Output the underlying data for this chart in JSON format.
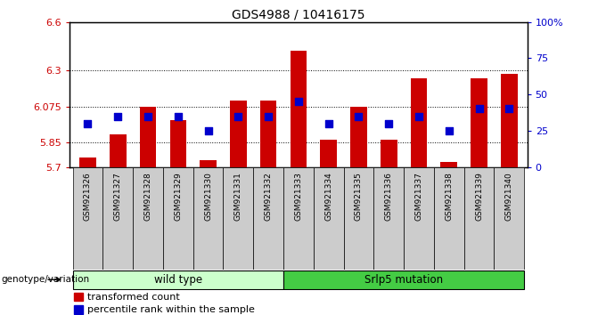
{
  "title": "GDS4988 / 10416175",
  "samples": [
    "GSM921326",
    "GSM921327",
    "GSM921328",
    "GSM921329",
    "GSM921330",
    "GSM921331",
    "GSM921332",
    "GSM921333",
    "GSM921334",
    "GSM921335",
    "GSM921336",
    "GSM921337",
    "GSM921338",
    "GSM921339",
    "GSM921340"
  ],
  "bar_values": [
    5.76,
    5.9,
    6.075,
    5.99,
    5.74,
    6.115,
    6.115,
    6.42,
    5.87,
    6.075,
    5.87,
    6.25,
    5.73,
    6.25,
    6.28
  ],
  "percentile_pct": [
    30,
    35,
    35,
    35,
    25,
    35,
    35,
    45,
    30,
    35,
    30,
    35,
    25,
    40,
    40
  ],
  "wild_type_count": 7,
  "ylim_left": [
    5.7,
    6.6
  ],
  "ylim_right": [
    0,
    100
  ],
  "yticks_left": [
    5.7,
    5.85,
    6.075,
    6.3,
    6.6
  ],
  "yticks_right": [
    0,
    25,
    50,
    75,
    100
  ],
  "bar_color": "#cc0000",
  "dot_color": "#0000cc",
  "wild_type_label": "wild type",
  "mutation_label": "Srlp5 mutation",
  "genotype_label": "genotype/variation",
  "legend_bar": "transformed count",
  "legend_dot": "percentile rank within the sample",
  "wild_type_bg": "#ccffcc",
  "mutation_bg": "#44cc44",
  "tick_label_color_left": "#cc0000",
  "tick_label_color_right": "#0000cc",
  "dot_size": 35
}
